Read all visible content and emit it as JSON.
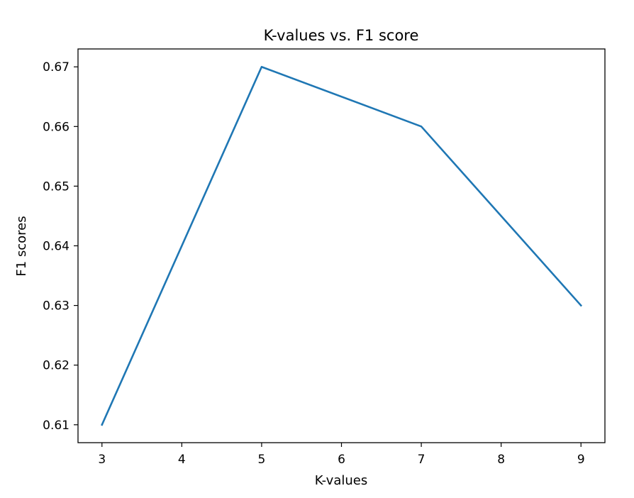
{
  "chart_data": {
    "type": "line",
    "title": "K-values vs. F1 score",
    "xlabel": "K-values",
    "ylabel": "F1 scores",
    "x": [
      3,
      5,
      7,
      9
    ],
    "series": [
      {
        "values": [
          0.61,
          0.67,
          0.66,
          0.63
        ],
        "color": "#1f77b4"
      }
    ],
    "xticks": [
      3,
      4,
      5,
      6,
      7,
      8,
      9
    ],
    "yticks": [
      0.61,
      0.62,
      0.63,
      0.64,
      0.65,
      0.66,
      0.67
    ],
    "xlim": [
      2.7,
      9.3
    ],
    "ylim": [
      0.607,
      0.673
    ],
    "grid": false,
    "legend": "none"
  }
}
